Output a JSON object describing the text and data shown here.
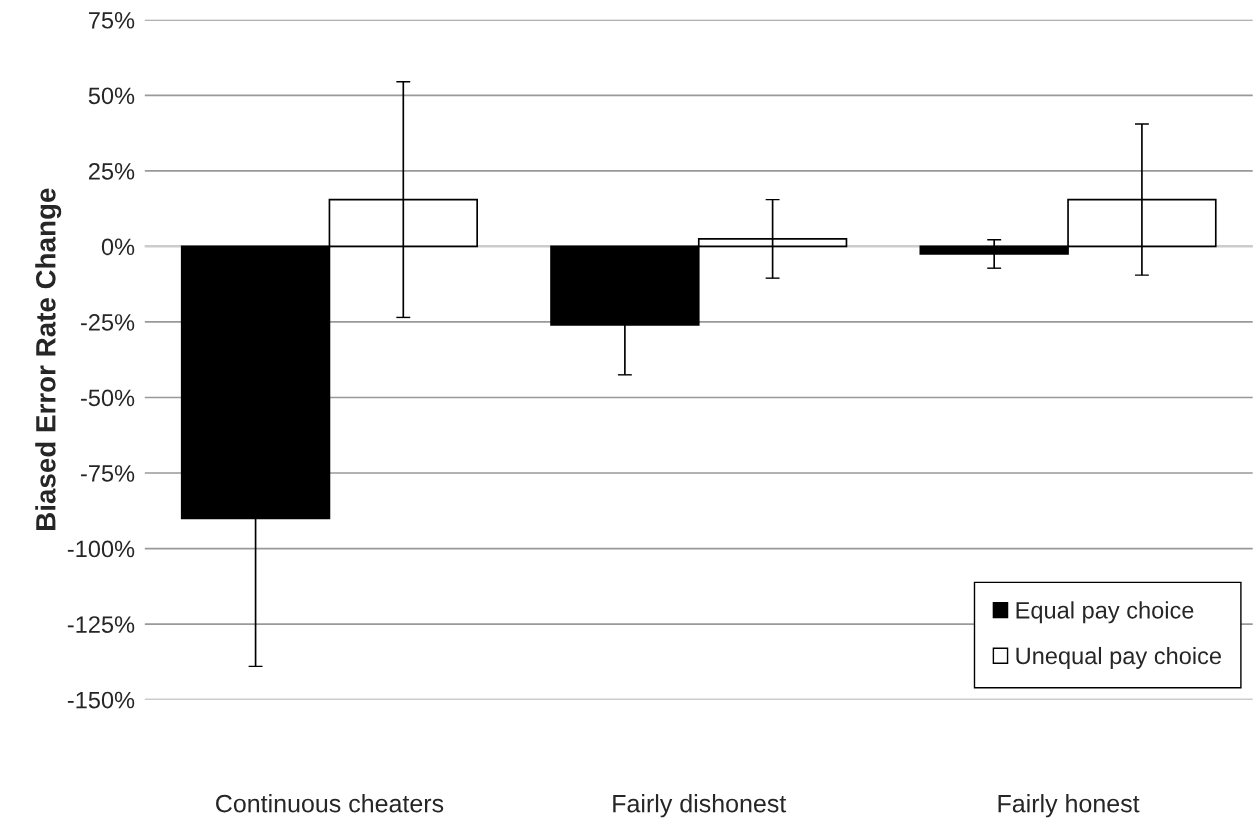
{
  "chart_data": {
    "type": "bar",
    "ylabel": "Biased Error Rate Change",
    "categories": [
      "Continuous cheaters",
      "Fairly dishonest",
      "Fairly honest"
    ],
    "series": [
      {
        "name": "Equal pay choice",
        "color": "#000000",
        "values": [
          -90,
          -26,
          -2.5
        ],
        "errors": [
          49,
          16.5,
          4.7
        ]
      },
      {
        "name": "Unequal pay choice",
        "color": "#ffffff",
        "values": [
          15.5,
          2.5,
          15.5
        ],
        "errors": [
          39,
          13,
          25
        ]
      }
    ],
    "ylim": [
      -150,
      75
    ],
    "yticks": [
      {
        "value": -150,
        "label": "-150%"
      },
      {
        "value": -125,
        "label": "-125%"
      },
      {
        "value": -100,
        "label": "-100%"
      },
      {
        "value": -75,
        "label": "-75%"
      },
      {
        "value": -50,
        "label": "-50%"
      },
      {
        "value": -25,
        "label": "-25%"
      },
      {
        "value": 0,
        "label": "0%"
      },
      {
        "value": 25,
        "label": "25%"
      },
      {
        "value": 50,
        "label": "50%"
      },
      {
        "value": 75,
        "label": "75%"
      }
    ],
    "grid": "y",
    "legend": "bottom right"
  }
}
